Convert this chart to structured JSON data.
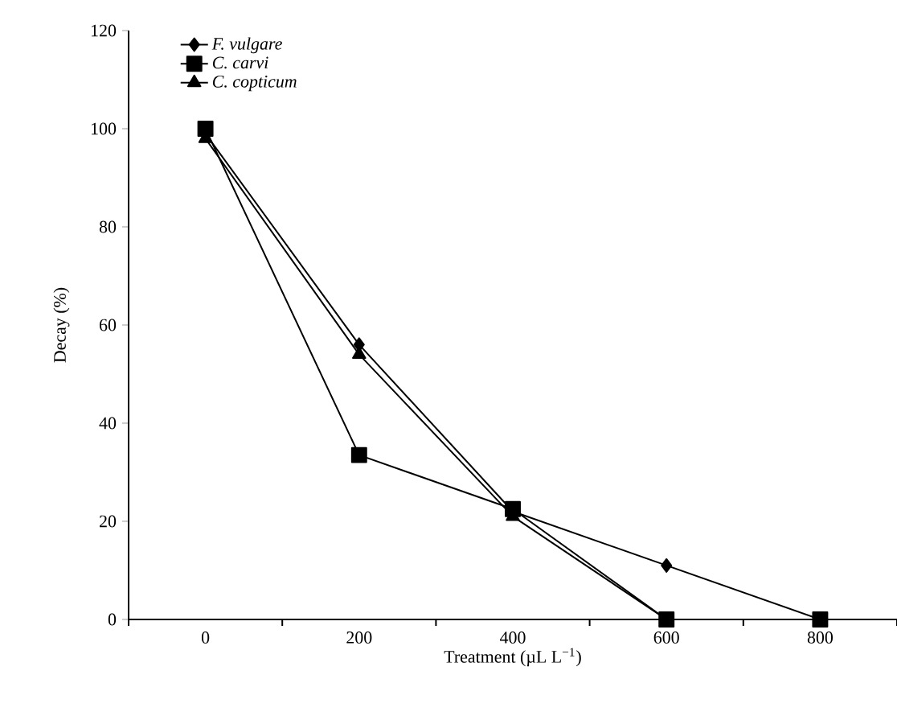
{
  "chart_data": {
    "type": "line",
    "xlabel": "Treatment (µL L$^{−1}$)",
    "ylabel": "Decay (%)",
    "categories": [
      "0",
      "200",
      "400",
      "600",
      "800"
    ],
    "series": [
      {
        "name": "F. vulgare",
        "color": "#000000",
        "marker": "diamond",
        "values": [
          99,
          56,
          22,
          11,
          0
        ]
      },
      {
        "name": "C. carvi",
        "color": "#000000",
        "marker": "square",
        "values": [
          100,
          33.5,
          22.5,
          0,
          0
        ]
      },
      {
        "name": "C. copticum",
        "color": "#000000",
        "marker": "triangle",
        "values": [
          98,
          54,
          21,
          0,
          0
        ]
      }
    ],
    "ylim": [
      0,
      120
    ],
    "yticks": [
      0,
      20,
      40,
      60,
      80,
      100,
      120
    ],
    "legend": "top left",
    "line_style": "solid"
  }
}
